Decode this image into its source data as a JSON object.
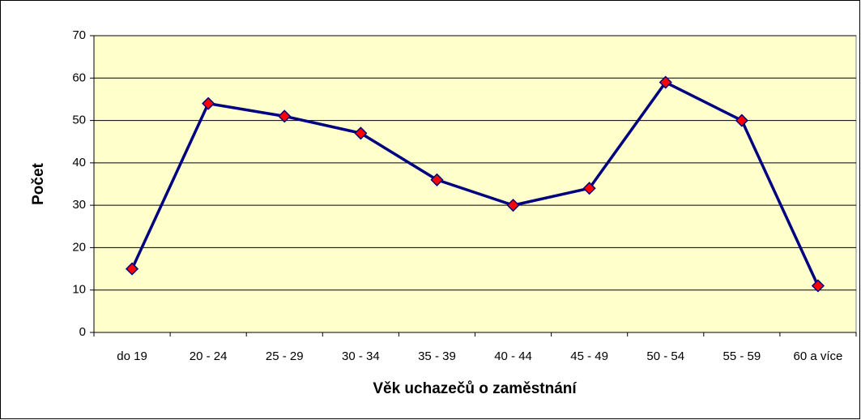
{
  "chart_data": {
    "type": "line",
    "xlabel": "Věk uchazečů o zaměstnání",
    "ylabel": "Počet",
    "categories": [
      "do 19",
      "20 - 24",
      "25 - 29",
      "30 - 34",
      "35 - 39",
      "40 - 44",
      "45 - 49",
      "50 - 54",
      "55 - 59",
      "60 a více"
    ],
    "series": [
      {
        "name": "Počet",
        "color": "#000080",
        "marker_color": "#ff0000",
        "values": [
          15,
          54,
          51,
          47,
          36,
          30,
          34,
          59,
          50,
          11
        ]
      }
    ],
    "ylim": [
      0,
      70
    ],
    "yticks": [
      0,
      10,
      20,
      30,
      40,
      50,
      60,
      70
    ],
    "grid": true
  }
}
